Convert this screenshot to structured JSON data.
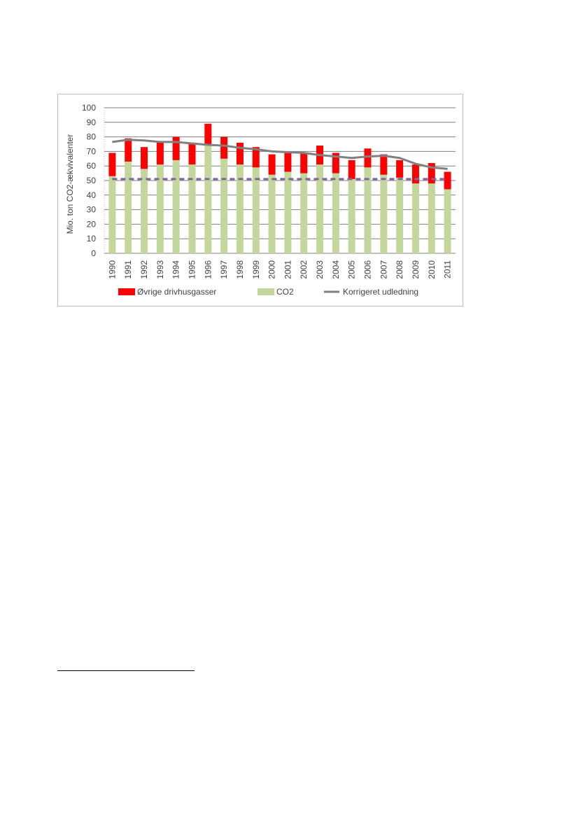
{
  "chart_data": {
    "type": "bar",
    "stacked": true,
    "title": "",
    "xlabel": "",
    "ylabel": "Mio. ton CO2-ækvivalenter",
    "ylim": [
      0,
      100
    ],
    "yticks": [
      0,
      10,
      20,
      30,
      40,
      50,
      60,
      70,
      80,
      90,
      100
    ],
    "grid": true,
    "legend_position": "bottom",
    "categories": [
      "1990",
      "1991",
      "1992",
      "1993",
      "1994",
      "1995",
      "1996",
      "1997",
      "1998",
      "1999",
      "2000",
      "2001",
      "2002",
      "2003",
      "2004",
      "2005",
      "2006",
      "2007",
      "2008",
      "2009",
      "2010",
      "2011"
    ],
    "series": [
      {
        "name": "CO2",
        "kind": "bar",
        "color": "#c3d69b",
        "values": [
          53,
          63,
          58,
          61,
          64,
          61,
          74,
          65,
          61,
          59,
          54,
          56,
          55,
          61,
          55,
          51,
          59,
          54,
          52,
          48,
          48,
          44
        ]
      },
      {
        "name": "Øvrige drivhusgasser",
        "kind": "bar",
        "color": "#ff0000",
        "values": [
          16,
          16,
          15,
          16,
          16,
          15,
          15,
          15,
          15,
          14,
          14,
          14,
          14,
          13,
          14,
          13,
          13,
          14,
          12,
          13,
          14,
          12
        ]
      },
      {
        "name": "Korrigeret udledning",
        "kind": "line",
        "color": "#808080",
        "values": [
          76.5,
          78,
          77.5,
          76.5,
          76.5,
          75.5,
          74.5,
          74,
          72.5,
          71.5,
          70,
          69.5,
          69,
          67.5,
          66.5,
          65.5,
          66.5,
          67,
          65.5,
          61.5,
          59,
          58
        ]
      },
      {
        "kind": "dashed-line",
        "color": "#8064a2",
        "values": [
          51,
          51,
          51,
          51,
          51,
          51,
          51,
          51,
          51,
          51,
          51,
          51,
          51,
          51,
          51,
          51,
          51,
          51,
          51,
          51,
          51,
          51
        ]
      }
    ]
  }
}
